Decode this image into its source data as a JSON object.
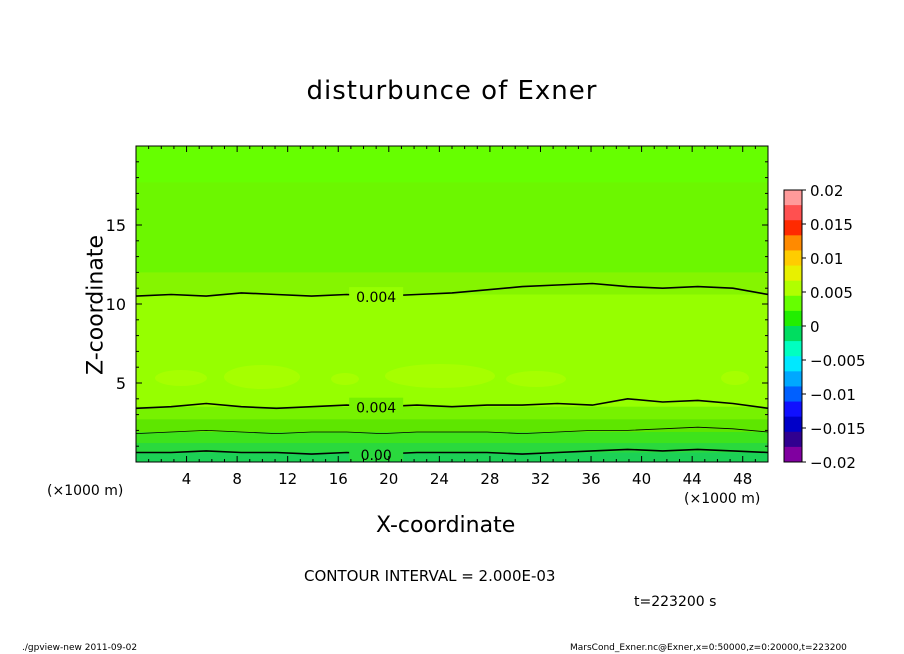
{
  "chart_data": {
    "type": "heatmap",
    "title": "disturbunce of Exner",
    "xlabel": "X-coordinate",
    "ylabel": "Z-coordinate",
    "x_unit_label": "(×1000 m)",
    "xlim": [
      0,
      50
    ],
    "ylim": [
      0,
      20
    ],
    "x_ticks": [
      4,
      8,
      12,
      16,
      20,
      24,
      28,
      32,
      36,
      40,
      44,
      48
    ],
    "x_tick_labels": [
      "4",
      "8",
      "12",
      "16",
      "20",
      "24",
      "28",
      "32",
      "36",
      "40",
      "44",
      "48"
    ],
    "y_ticks": [
      5,
      10,
      15
    ],
    "y_tick_labels": [
      "5",
      "10",
      "15"
    ],
    "colorbar": {
      "ticks": [
        0.02,
        0.015,
        0.01,
        0.005,
        0,
        -0.005,
        -0.01,
        -0.015,
        -0.02
      ],
      "tick_labels": [
        "0.02",
        "0.015",
        "0.01",
        "0.005",
        "0",
        "−0.005",
        "−0.01",
        "−0.015",
        "−0.02"
      ],
      "colors": [
        "#ff9a9a",
        "#ff5050",
        "#ff2a00",
        "#ff8a00",
        "#ffcc00",
        "#e8f000",
        "#b0ff00",
        "#66ff00",
        "#22ee00",
        "#00dd60",
        "#00ffc0",
        "#00e8ff",
        "#00a8ff",
        "#0060ff",
        "#1010ff",
        "#0000c8",
        "#300090",
        "#8000a0"
      ]
    },
    "contours": [
      {
        "label": "0.004",
        "z": [
          10.5,
          10.6,
          10.5,
          10.7,
          10.6,
          10.5,
          10.6,
          10.5,
          10.6,
          10.7,
          10.9,
          11.1,
          11.2,
          11.3,
          11.1,
          11.0,
          11.1,
          11.0,
          10.6
        ]
      },
      {
        "label": "0.004",
        "z": [
          3.4,
          3.5,
          3.7,
          3.5,
          3.4,
          3.5,
          3.6,
          3.5,
          3.6,
          3.5,
          3.6,
          3.6,
          3.7,
          3.6,
          4.0,
          3.8,
          3.9,
          3.7,
          3.4
        ]
      },
      {
        "label": "",
        "z": [
          1.8,
          1.9,
          2.0,
          1.9,
          1.8,
          1.9,
          1.9,
          1.8,
          1.9,
          1.9,
          1.9,
          1.8,
          1.9,
          2.0,
          2.0,
          2.1,
          2.2,
          2.1,
          1.9
        ]
      },
      {
        "label": "0.00",
        "z": [
          0.6,
          0.6,
          0.7,
          0.6,
          0.6,
          0.5,
          0.6,
          0.5,
          0.6,
          0.6,
          0.6,
          0.5,
          0.6,
          0.7,
          0.8,
          0.7,
          0.8,
          0.7,
          0.6
        ]
      }
    ],
    "fill_bands": [
      {
        "z_top": 20.0,
        "color": "#66ff00"
      },
      {
        "z_top": 17.7,
        "color": "#6cf700"
      },
      {
        "z_top": 12.0,
        "color": "#85f500"
      },
      {
        "z_top": 10.6,
        "color": "#96ff00"
      },
      {
        "z_top": 3.5,
        "color": "#77f200"
      },
      {
        "z_top": 2.7,
        "color": "#5ee600"
      },
      {
        "z_top": 1.9,
        "color": "#3ee31b"
      },
      {
        "z_top": 1.2,
        "color": "#2ad93d"
      },
      {
        "z_top": 0.6,
        "color": "#1cd155"
      }
    ],
    "annotation": "CONTOUR INTERVAL = 2.000E-03",
    "time": "t=223200 s"
  },
  "footer": {
    "left": "./gpview-new  2011-09-02",
    "right": "MarsCond_Exner.nc@Exner,x=0:50000,z=0:20000,t=223200"
  }
}
